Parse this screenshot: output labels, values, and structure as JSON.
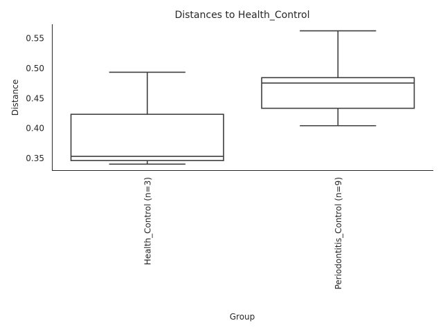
{
  "chart_data": {
    "type": "box",
    "title": "Distances to Health_Control",
    "xlabel": "Group",
    "ylabel": "Distance",
    "ylim": [
      0.33,
      0.573
    ],
    "yticks": [
      0.35,
      0.4,
      0.45,
      0.5,
      0.55
    ],
    "ytick_labels": [
      "0.35",
      "0.40",
      "0.45",
      "0.50",
      "0.55"
    ],
    "grid": false,
    "categories": [
      "Health_Control (n=3)",
      "Periodontitis_Control (n=9)"
    ],
    "boxes": [
      {
        "category": "Health_Control (n=3)",
        "whisker_low": 0.34,
        "q1": 0.346,
        "median": 0.353,
        "q3": 0.423,
        "whisker_high": 0.493
      },
      {
        "category": "Periodontitis_Control (n=9)",
        "whisker_low": 0.404,
        "q1": 0.433,
        "median": 0.475,
        "q3": 0.484,
        "whisker_high": 0.562
      }
    ]
  }
}
